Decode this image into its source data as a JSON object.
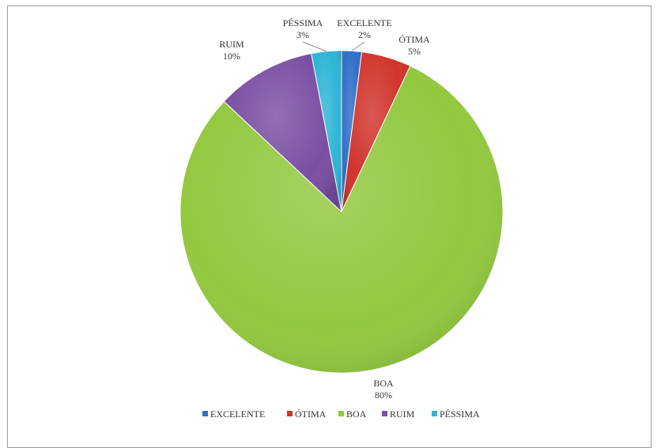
{
  "chart_data": {
    "type": "pie",
    "title": "",
    "slices": [
      {
        "name": "EXCELENTE",
        "value": 2,
        "label": "2%",
        "color": "#2f6fc6"
      },
      {
        "name": "ÓTIMA",
        "value": 5,
        "label": "5%",
        "color": "#d0342c"
      },
      {
        "name": "BOA",
        "value": 80,
        "label": "80%",
        "color": "#92c83e"
      },
      {
        "name": "RUIM",
        "value": 10,
        "label": "10%",
        "color": "#7a4fa3"
      },
      {
        "name": "PÉSSIMA",
        "value": 3,
        "label": "3%",
        "color": "#2eb5d6"
      }
    ],
    "legend_position": "bottom",
    "grid": false
  }
}
